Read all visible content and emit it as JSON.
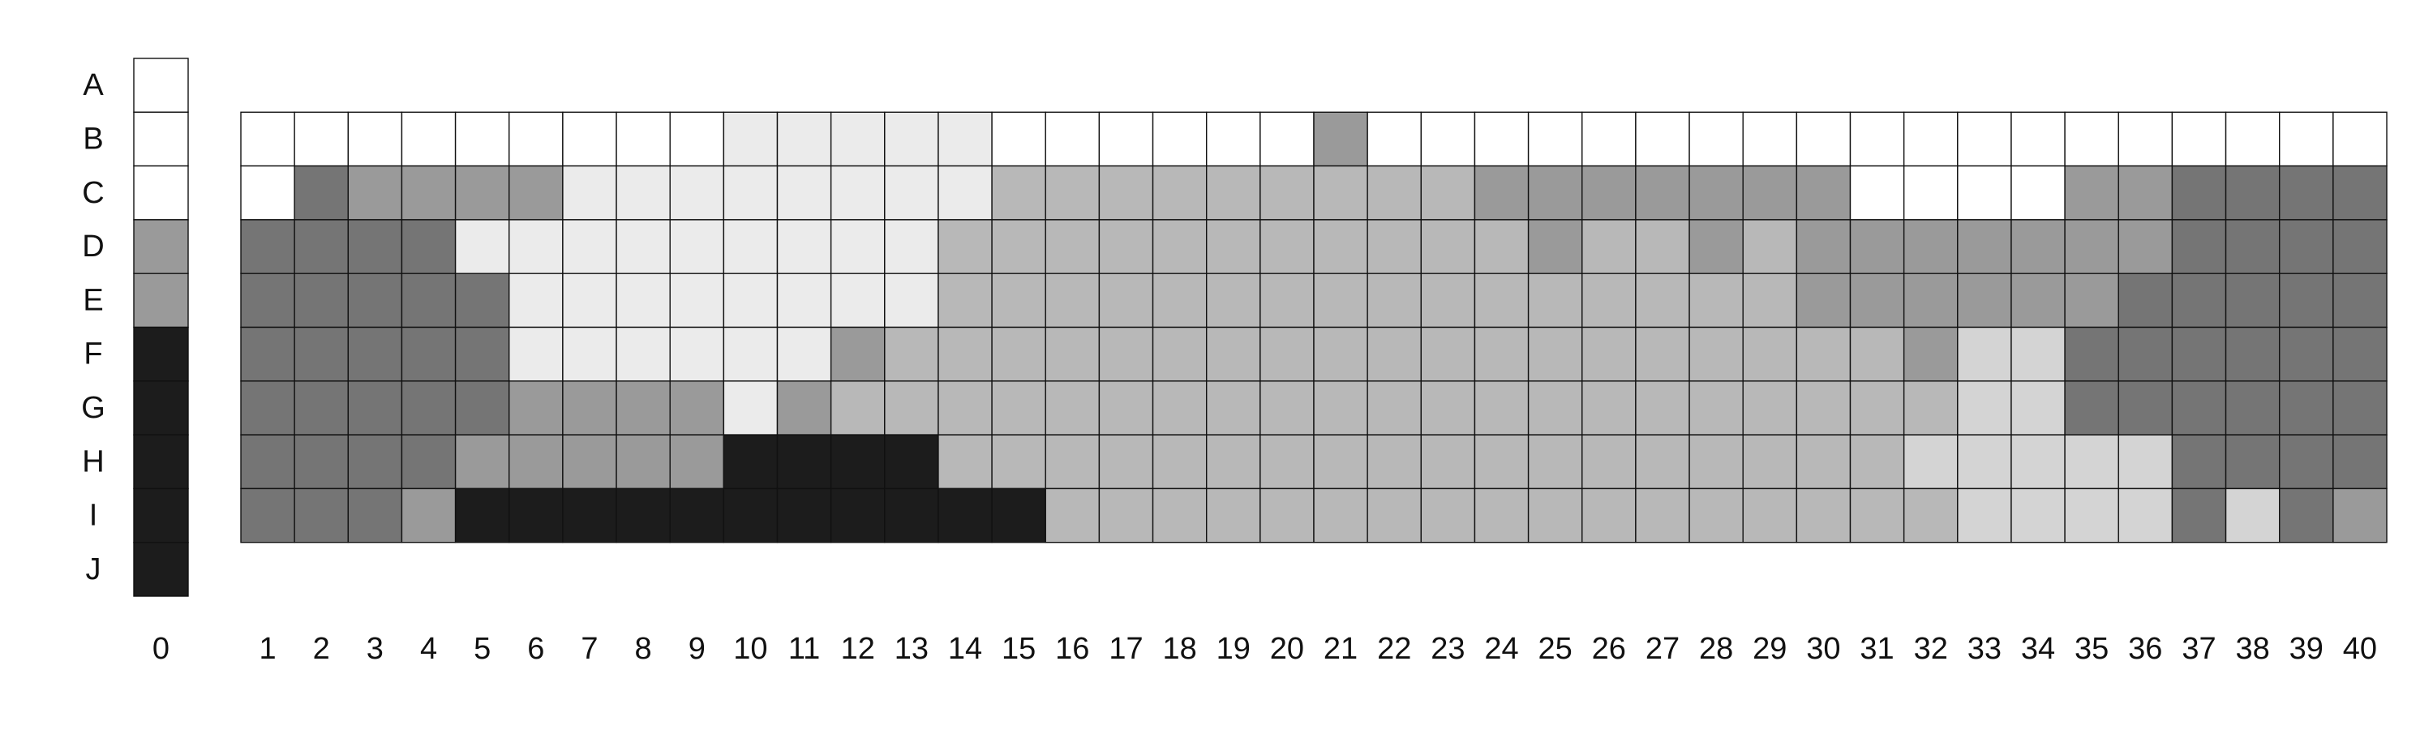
{
  "palette": {
    "W": "#ffffff",
    "L": "#ebebeb",
    "P": "#d4d4d4",
    "S": "#b8b8b8",
    "M": "#9a9a9a",
    "D": "#757575",
    "K": "#1c1c1c"
  },
  "row_labels": [
    "A",
    "B",
    "C",
    "D",
    "E",
    "F",
    "G",
    "H",
    "I",
    "J"
  ],
  "column_labels": [
    "0",
    "1",
    "2",
    "3",
    "4",
    "5",
    "6",
    "7",
    "8",
    "9",
    "10",
    "11",
    "12",
    "13",
    "14",
    "15",
    "16",
    "17",
    "18",
    "19",
    "20",
    "21",
    "22",
    "23",
    "24",
    "25",
    "26",
    "27",
    "28",
    "29",
    "30",
    "31",
    "32",
    "33",
    "34",
    "35",
    "36",
    "37",
    "38",
    "39",
    "40"
  ],
  "scale_column": [
    "W",
    "W",
    "W",
    "M",
    "M",
    "K",
    "K",
    "K",
    "K",
    "K"
  ],
  "grid_first_row": "B",
  "grid_rows": [
    "WWWWWWWWWLLLLLWWWWWWMWWWWWWWWWWWWWWWWWWW",
    "WDMMMMLLLLLLLLSSSSSSSSSMMMMMMMWWWWMMDDDD",
    "DDDDLLLLLLLLLSSSSSSSSSSSMSSMSMMMMMMMDDDD",
    "DDDDDLLLLLLLLSSSSSSSSSSSSSSSSMMMMMMDDDDD",
    "DDDDDLLLLLLMSSSSSSSSSSSSSSSSSSSMPPDDDDDD",
    "DDDDDMMMMLMSSSSSSSSSSSSSSSSSSSSSPPDDDDDD",
    "DDDDMMMMMKKKKSSSSSSSSSSSSSSSSSSPPPPPDDDD",
    "DDDMKKKKKKKKKKKSSSSSSSSSSSSSSSSSPPPPDPDM"
  ]
}
